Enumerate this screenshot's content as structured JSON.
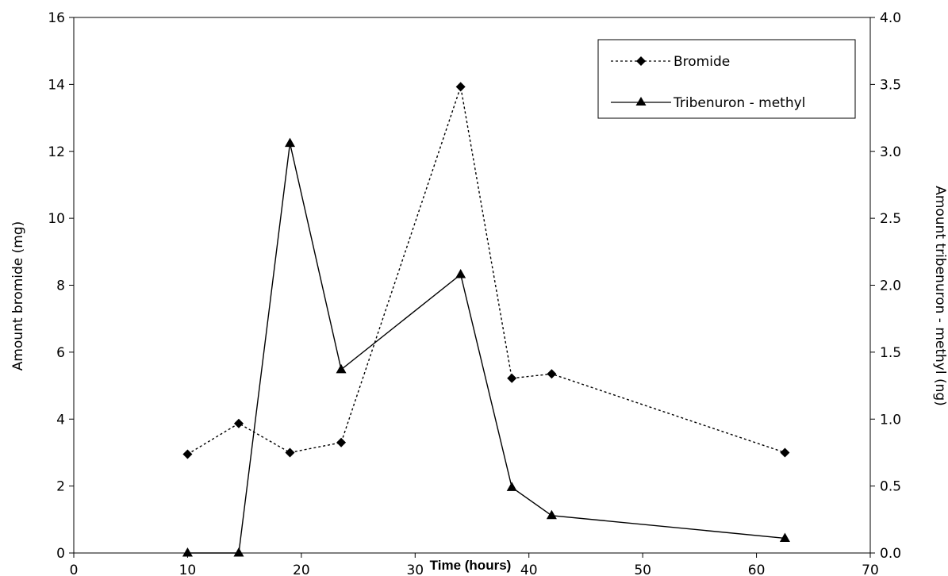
{
  "chart_data": {
    "type": "line",
    "title": "",
    "xlabel": "Time (hours)",
    "ylabel_left": "Amount bromide (mg)",
    "ylabel_right": "Amount tribenuron - methyl (ng)",
    "xlim": [
      0,
      70
    ],
    "ylim_left": [
      0,
      16
    ],
    "ylim_right": [
      0,
      4
    ],
    "x_ticks": [
      "0",
      "10",
      "20",
      "30",
      "40",
      "50",
      "60",
      "70"
    ],
    "y_left_ticks": [
      "0",
      "2",
      "4",
      "6",
      "8",
      "10",
      "12",
      "14",
      "16"
    ],
    "y_right_ticks": [
      "0.0",
      "0.5",
      "1.0",
      "1.5",
      "2.0",
      "2.5",
      "3.0",
      "3.5",
      "4.0"
    ],
    "grid": false,
    "legend_position": "top-right",
    "series": [
      {
        "name": "Bromide",
        "axis": "left",
        "line_style": "dotted",
        "marker": "diamond",
        "color": "#000000",
        "points": [
          {
            "x": 10,
            "y": 2.95
          },
          {
            "x": 14.5,
            "y": 3.87
          },
          {
            "x": 19,
            "y": 3.0
          },
          {
            "x": 23.5,
            "y": 3.3
          },
          {
            "x": 34,
            "y": 13.93
          },
          {
            "x": 38.5,
            "y": 5.22
          },
          {
            "x": 42,
            "y": 5.35
          },
          {
            "x": 62.5,
            "y": 3.0
          }
        ]
      },
      {
        "name": "Tribenuron - methyl",
        "axis": "right",
        "line_style": "solid",
        "marker": "triangle",
        "color": "#000000",
        "points": [
          {
            "x": 10,
            "y": 0.0
          },
          {
            "x": 14.5,
            "y": 0.0
          },
          {
            "x": 19,
            "y": 3.06
          },
          {
            "x": 23.5,
            "y": 1.37
          },
          {
            "x": 34,
            "y": 2.08
          },
          {
            "x": 38.5,
            "y": 0.49
          },
          {
            "x": 42,
            "y": 0.28
          },
          {
            "x": 62.5,
            "y": 0.11
          }
        ]
      }
    ]
  }
}
